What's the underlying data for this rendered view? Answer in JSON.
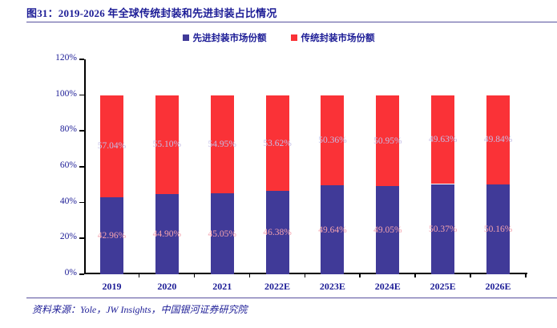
{
  "figure": {
    "title": "图31：2019-2026 年全球传统封装和先进封装占比情况",
    "source": "资料来源：Yole，JW Insights，中国银河证券研究院"
  },
  "colors": {
    "navy_text": "#1c1c96",
    "rule_line": "#57509e",
    "axis_line": "#000000",
    "advanced_bar": "#403a98",
    "traditional_bar": "#fa3237",
    "label_on_advanced": "#f3a2ae",
    "label_on_traditional": "#c5bde6"
  },
  "chart_data": {
    "type": "bar",
    "stacked": true,
    "title": "图31：2019-2026 年全球传统封装和先进封装占比情况",
    "categories": [
      "2019",
      "2020",
      "2021",
      "2022E",
      "2023E",
      "2024E",
      "2025E",
      "2026E"
    ],
    "series": [
      {
        "name": "先进封装市场份额",
        "color_key": "advanced_bar",
        "label_color_key": "label_on_advanced",
        "values": [
          42.96,
          44.9,
          45.05,
          46.38,
          49.64,
          49.05,
          50.37,
          50.16
        ]
      },
      {
        "name": "传统封装市场份额",
        "color_key": "traditional_bar",
        "label_color_key": "label_on_traditional",
        "values": [
          57.04,
          55.1,
          54.95,
          53.62,
          50.36,
          50.95,
          49.63,
          49.84
        ]
      }
    ],
    "xlabel": "",
    "ylabel": "",
    "ylim": [
      0,
      120
    ],
    "y_tick_step": 20,
    "y_tick_labels": [
      "0%",
      "20%",
      "40%",
      "60%",
      "80%",
      "100%",
      "120%"
    ],
    "grid": false,
    "legend_position": "top",
    "value_label_format": "percent_2dp"
  }
}
